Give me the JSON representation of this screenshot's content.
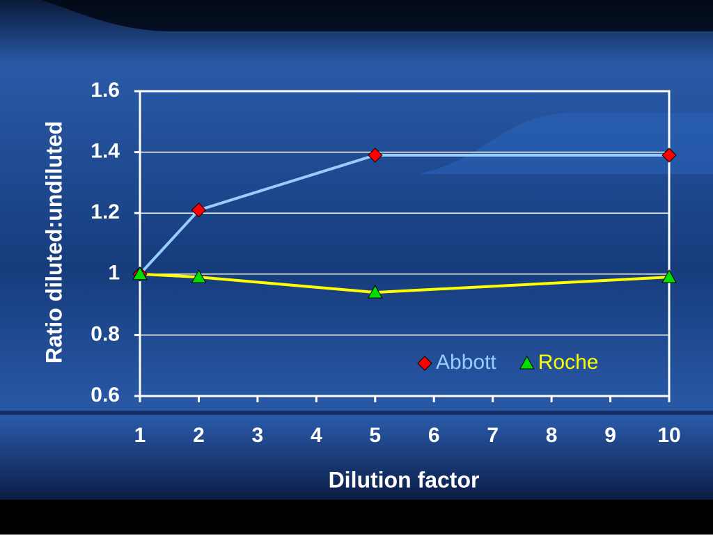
{
  "chart_data": {
    "type": "line",
    "x_label": "Dilution factor",
    "y_label": "Ratio diluted:undiluted",
    "x": [
      1,
      2,
      5,
      10
    ],
    "series": [
      {
        "name": "Abbott",
        "color": "#99ccff",
        "marker": "diamond",
        "marker_color": "#ff0000",
        "values": [
          1.0,
          1.21,
          1.39,
          1.39
        ]
      },
      {
        "name": "Roche",
        "color": "#ffff00",
        "marker": "triangle",
        "marker_color": "#00dd00",
        "values": [
          1.0,
          0.99,
          0.94,
          0.99
        ]
      }
    ],
    "xlim": [
      1,
      10
    ],
    "xticks": [
      1,
      2,
      3,
      4,
      5,
      6,
      7,
      8,
      9,
      10
    ],
    "ylim": [
      0.6,
      1.6
    ],
    "yticks": [
      0.6,
      0.8,
      1,
      1.2,
      1.4,
      1.6
    ],
    "grid": true,
    "legend": "lower right"
  }
}
